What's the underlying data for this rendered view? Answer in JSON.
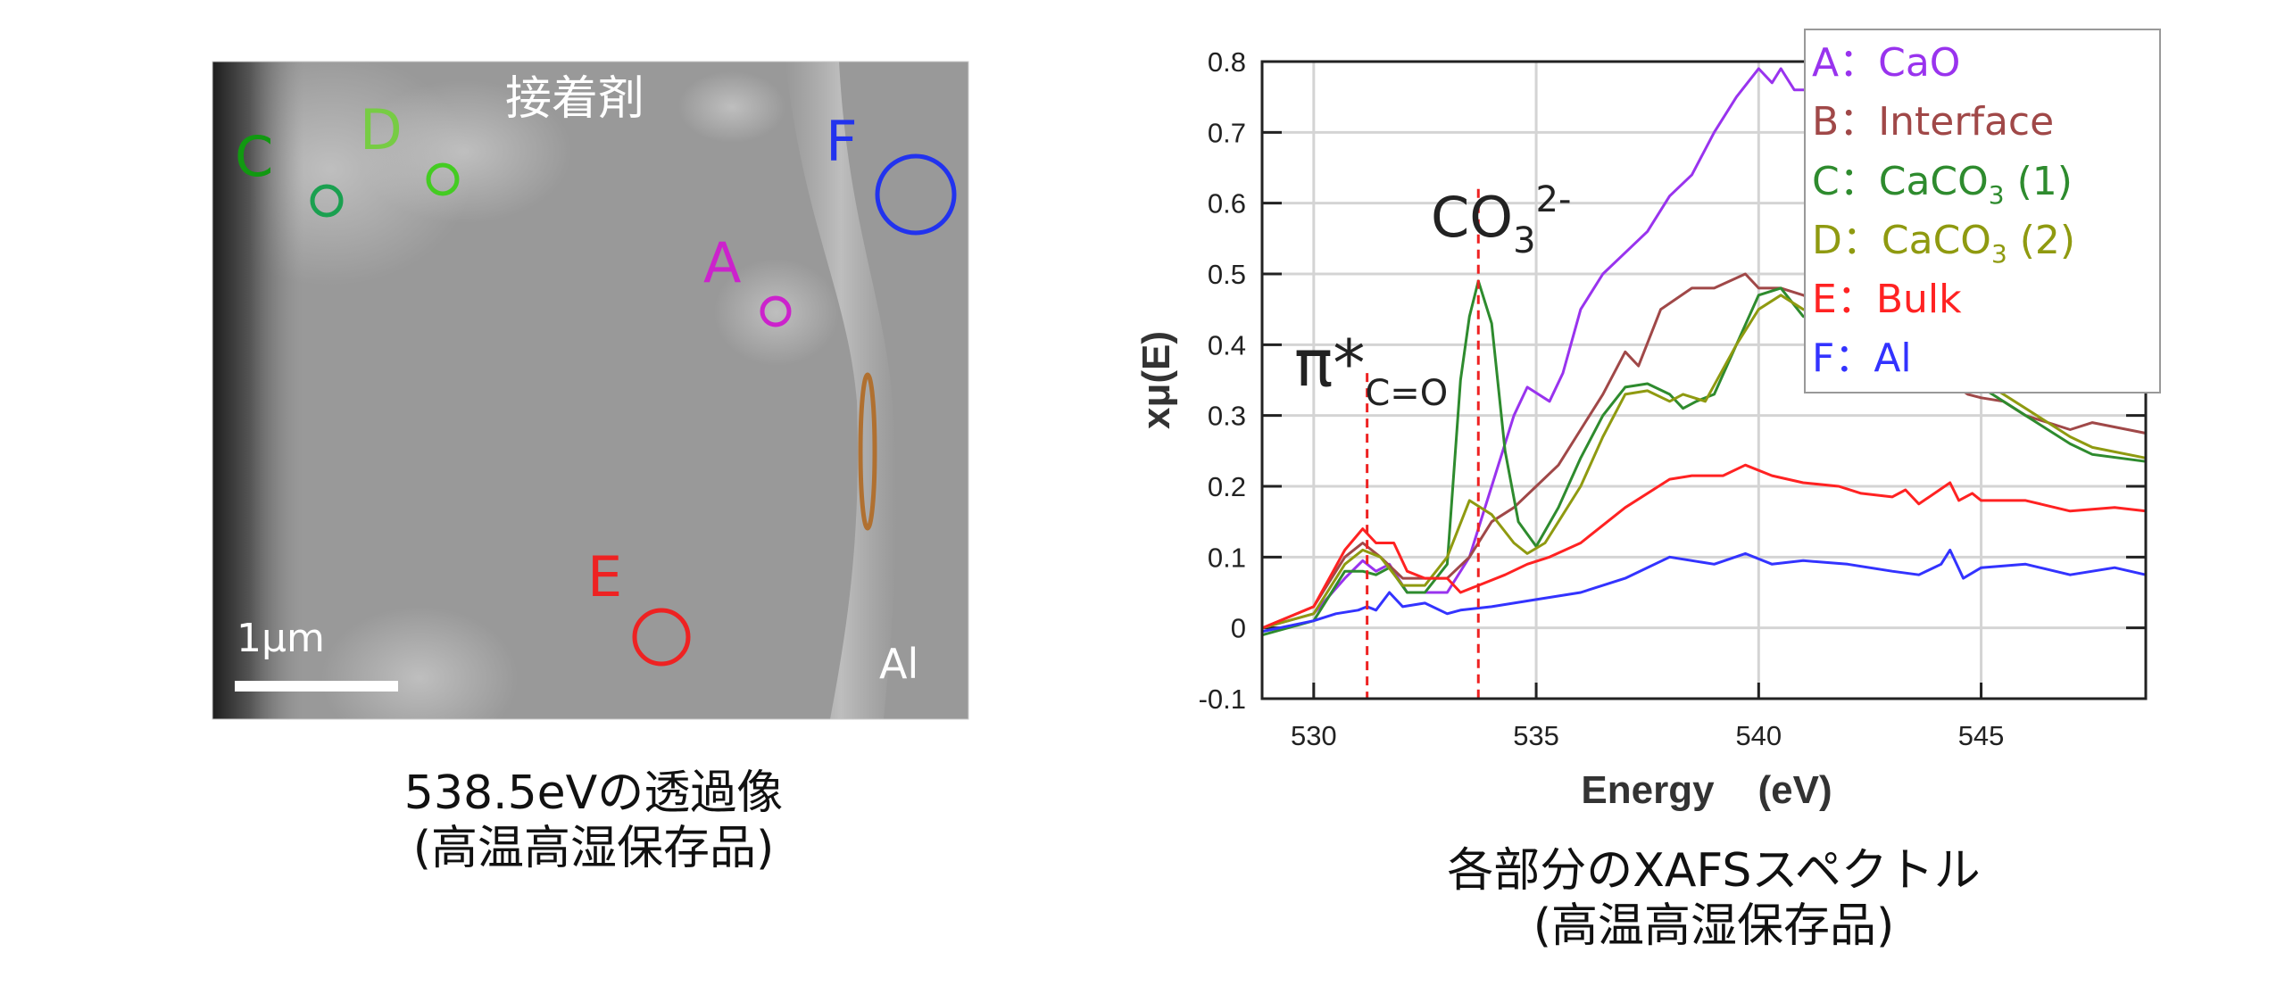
{
  "micrograph": {
    "region_label": "接着剤",
    "metal_label": "Al",
    "scale_label": "1μm",
    "points": [
      {
        "letter": "A",
        "color": "#cc22cc"
      },
      {
        "letter": "C",
        "color": "#119911"
      },
      {
        "letter": "D",
        "color": "#77cc44"
      },
      {
        "letter": "E",
        "color": "#ee2222"
      },
      {
        "letter": "F",
        "color": "#2233ee"
      }
    ],
    "interface_marker_color": "#b07030",
    "caption_line1": "538.5eVの透過像",
    "caption_line2": "(高温高湿保存品)"
  },
  "spectrum_caption": {
    "line1": "各部分のXAFSスペクトル",
    "line2": "(高温高湿保存品)"
  },
  "chart_data": {
    "type": "line",
    "xlabel": "Energy    (eV)",
    "ylabel": "xμ(E)",
    "xlim": [
      528.84,
      548.7
    ],
    "ylim": [
      -0.1,
      0.8
    ],
    "xticks": [
      "530",
      "535",
      "540",
      "545"
    ],
    "yticks": [
      "-0.1",
      "0",
      "0.1",
      "0.2",
      "0.3",
      "0.4",
      "0.5",
      "0.6",
      "0.7",
      "0.8"
    ],
    "grid": true,
    "legend_position": "top-right",
    "annotations": [
      {
        "energy": 531.2,
        "top": 0.36,
        "label": "π*",
        "sub": "C=O",
        "sup": ""
      },
      {
        "energy": 533.7,
        "top": 0.62,
        "label": "CO",
        "sub": "3",
        "sup": "2-"
      }
    ],
    "series": [
      {
        "letter": "A",
        "sep": "：",
        "name": "CaO",
        "sub": "",
        "suffix": "",
        "color": "#9933ee",
        "points": [
          [
            528.85,
            0
          ],
          [
            530,
            0.02
          ],
          [
            530.7,
            0.07
          ],
          [
            531.1,
            0.095
          ],
          [
            531.4,
            0.08
          ],
          [
            531.7,
            0.09
          ],
          [
            532.1,
            0.05
          ],
          [
            532.5,
            0.05
          ],
          [
            533,
            0.05
          ],
          [
            533.5,
            0.1
          ],
          [
            534,
            0.2
          ],
          [
            534.5,
            0.3
          ],
          [
            534.8,
            0.34
          ],
          [
            535.3,
            0.32
          ],
          [
            535.6,
            0.36
          ],
          [
            536,
            0.45
          ],
          [
            536.5,
            0.5
          ],
          [
            537,
            0.53
          ],
          [
            537.5,
            0.56
          ],
          [
            538,
            0.61
          ],
          [
            538.5,
            0.64
          ],
          [
            539,
            0.7
          ],
          [
            539.5,
            0.75
          ],
          [
            540,
            0.79
          ],
          [
            540.3,
            0.77
          ],
          [
            540.5,
            0.79
          ],
          [
            540.8,
            0.76
          ],
          [
            541.5,
            0.76
          ]
        ]
      },
      {
        "letter": "B",
        "sep": "：",
        "name": "Interface",
        "sub": "",
        "suffix": "",
        "color": "#a04848",
        "points": [
          [
            528.85,
            0
          ],
          [
            530,
            0.03
          ],
          [
            530.7,
            0.1
          ],
          [
            531.1,
            0.12
          ],
          [
            531.5,
            0.1
          ],
          [
            532,
            0.07
          ],
          [
            532.5,
            0.07
          ],
          [
            533,
            0.07
          ],
          [
            533.5,
            0.1
          ],
          [
            534,
            0.15
          ],
          [
            534.5,
            0.17
          ],
          [
            535,
            0.2
          ],
          [
            535.5,
            0.23
          ],
          [
            536,
            0.28
          ],
          [
            536.5,
            0.33
          ],
          [
            537,
            0.39
          ],
          [
            537.3,
            0.37
          ],
          [
            537.8,
            0.45
          ],
          [
            538.5,
            0.48
          ],
          [
            539,
            0.48
          ],
          [
            539.7,
            0.5
          ],
          [
            540,
            0.48
          ],
          [
            540.5,
            0.48
          ],
          [
            541,
            0.47
          ],
          [
            542,
            0.44
          ],
          [
            543,
            0.4
          ],
          [
            544,
            0.36
          ],
          [
            544.7,
            0.33
          ],
          [
            545,
            0.325
          ],
          [
            545.5,
            0.32
          ],
          [
            546,
            0.3
          ],
          [
            547,
            0.28
          ],
          [
            547.5,
            0.29
          ],
          [
            548.7,
            0.275
          ]
        ]
      },
      {
        "letter": "C",
        "sep": "：",
        "name": "CaCO",
        "sub": "3",
        "suffix": " (1)",
        "color": "#2e8b2e",
        "points": [
          [
            528.85,
            -0.01
          ],
          [
            530,
            0.01
          ],
          [
            530.7,
            0.08
          ],
          [
            531.1,
            0.08
          ],
          [
            531.4,
            0.075
          ],
          [
            531.7,
            0.085
          ],
          [
            532.1,
            0.05
          ],
          [
            532.5,
            0.05
          ],
          [
            533,
            0.09
          ],
          [
            533.3,
            0.35
          ],
          [
            533.5,
            0.44
          ],
          [
            533.7,
            0.49
          ],
          [
            534,
            0.43
          ],
          [
            534.3,
            0.25
          ],
          [
            534.6,
            0.15
          ],
          [
            535,
            0.115
          ],
          [
            535.5,
            0.17
          ],
          [
            536,
            0.24
          ],
          [
            536.5,
            0.3
          ],
          [
            537,
            0.34
          ],
          [
            537.5,
            0.345
          ],
          [
            538,
            0.33
          ],
          [
            538.3,
            0.31
          ],
          [
            538.6,
            0.32
          ],
          [
            539,
            0.33
          ],
          [
            539.5,
            0.4
          ],
          [
            540,
            0.47
          ],
          [
            540.5,
            0.48
          ],
          [
            541,
            0.44
          ],
          [
            542,
            0.42
          ],
          [
            543,
            0.4
          ],
          [
            544,
            0.37
          ],
          [
            545,
            0.34
          ],
          [
            546,
            0.3
          ],
          [
            547,
            0.26
          ],
          [
            547.5,
            0.245
          ],
          [
            548.7,
            0.235
          ]
        ]
      },
      {
        "letter": "D",
        "sep": "：",
        "name": "CaCO",
        "sub": "3",
        "suffix": " (2)",
        "color": "#8f9a10",
        "points": [
          [
            528.85,
            0
          ],
          [
            530,
            0.02
          ],
          [
            530.7,
            0.09
          ],
          [
            531.1,
            0.11
          ],
          [
            531.5,
            0.1
          ],
          [
            532,
            0.06
          ],
          [
            532.5,
            0.06
          ],
          [
            533,
            0.1
          ],
          [
            533.5,
            0.18
          ],
          [
            534,
            0.16
          ],
          [
            534.5,
            0.12
          ],
          [
            534.8,
            0.105
          ],
          [
            535.2,
            0.12
          ],
          [
            535.5,
            0.15
          ],
          [
            536,
            0.2
          ],
          [
            536.5,
            0.27
          ],
          [
            537,
            0.33
          ],
          [
            537.5,
            0.335
          ],
          [
            538,
            0.32
          ],
          [
            538.3,
            0.33
          ],
          [
            538.8,
            0.32
          ],
          [
            539.5,
            0.4
          ],
          [
            540,
            0.45
          ],
          [
            540.5,
            0.47
          ],
          [
            541,
            0.45
          ],
          [
            542,
            0.43
          ],
          [
            543,
            0.41
          ],
          [
            544,
            0.38
          ],
          [
            545,
            0.35
          ],
          [
            546,
            0.31
          ],
          [
            547,
            0.27
          ],
          [
            547.5,
            0.255
          ],
          [
            548.7,
            0.24
          ]
        ]
      },
      {
        "letter": "E",
        "sep": "：",
        "name": "Bulk",
        "sub": "",
        "suffix": "",
        "color": "#ff2222",
        "points": [
          [
            528.85,
            0
          ],
          [
            530,
            0.03
          ],
          [
            530.7,
            0.11
          ],
          [
            531.1,
            0.14
          ],
          [
            531.4,
            0.12
          ],
          [
            531.8,
            0.12
          ],
          [
            532.1,
            0.08
          ],
          [
            532.5,
            0.07
          ],
          [
            533,
            0.07
          ],
          [
            533.3,
            0.05
          ],
          [
            533.7,
            0.06
          ],
          [
            534.3,
            0.075
          ],
          [
            534.8,
            0.09
          ],
          [
            535.3,
            0.1
          ],
          [
            536,
            0.12
          ],
          [
            537,
            0.17
          ],
          [
            538,
            0.21
          ],
          [
            538.5,
            0.215
          ],
          [
            539.2,
            0.215
          ],
          [
            539.7,
            0.23
          ],
          [
            540.3,
            0.215
          ],
          [
            541,
            0.205
          ],
          [
            541.8,
            0.2
          ],
          [
            542.3,
            0.19
          ],
          [
            543,
            0.185
          ],
          [
            543.3,
            0.195
          ],
          [
            543.6,
            0.175
          ],
          [
            544.3,
            0.205
          ],
          [
            544.5,
            0.18
          ],
          [
            544.8,
            0.19
          ],
          [
            545,
            0.18
          ],
          [
            546,
            0.18
          ],
          [
            547,
            0.165
          ],
          [
            548,
            0.17
          ],
          [
            548.7,
            0.165
          ]
        ]
      },
      {
        "letter": "F",
        "sep": "：",
        "name": "Al",
        "sub": "",
        "suffix": "",
        "color": "#3333ff",
        "points": [
          [
            528.85,
            -0.005
          ],
          [
            530,
            0.01
          ],
          [
            530.5,
            0.02
          ],
          [
            531,
            0.025
          ],
          [
            531.2,
            0.03
          ],
          [
            531.4,
            0.025
          ],
          [
            531.7,
            0.05
          ],
          [
            532,
            0.03
          ],
          [
            532.5,
            0.035
          ],
          [
            533,
            0.02
          ],
          [
            533.3,
            0.025
          ],
          [
            534,
            0.03
          ],
          [
            535,
            0.04
          ],
          [
            536,
            0.05
          ],
          [
            537,
            0.07
          ],
          [
            538,
            0.1
          ],
          [
            539,
            0.09
          ],
          [
            539.7,
            0.105
          ],
          [
            540.3,
            0.09
          ],
          [
            541,
            0.095
          ],
          [
            542,
            0.09
          ],
          [
            543,
            0.08
          ],
          [
            543.6,
            0.075
          ],
          [
            544.1,
            0.09
          ],
          [
            544.3,
            0.11
          ],
          [
            544.6,
            0.07
          ],
          [
            545,
            0.085
          ],
          [
            546,
            0.09
          ],
          [
            547,
            0.075
          ],
          [
            548,
            0.085
          ],
          [
            548.7,
            0.075
          ]
        ]
      }
    ]
  }
}
